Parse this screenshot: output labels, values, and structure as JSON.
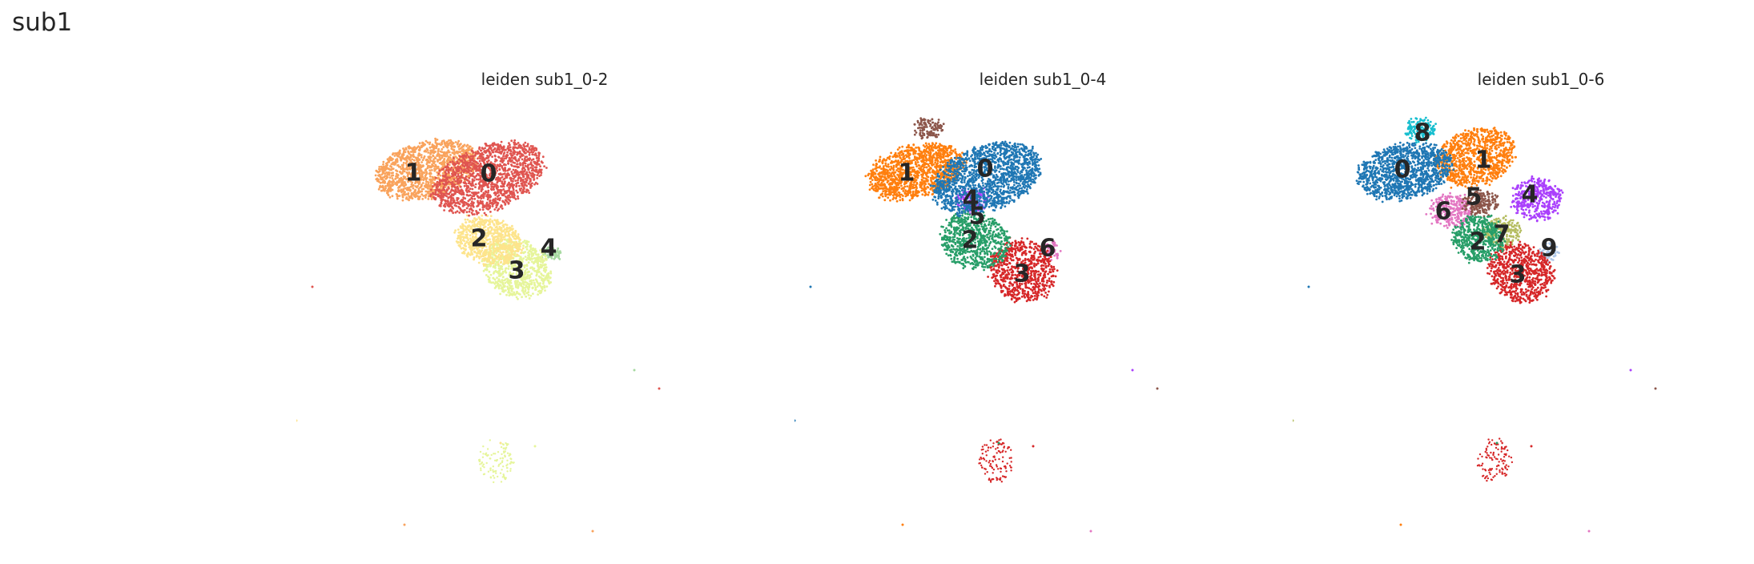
{
  "figure": {
    "suptitle": "sub1"
  },
  "chart_data": [
    {
      "type": "scatter",
      "title": "leiden sub1_0-2",
      "xlabel": "",
      "ylabel": "",
      "legend": "on data",
      "grid": false,
      "clusters": [
        {
          "label": "0",
          "color": "#e05550"
        },
        {
          "label": "1",
          "color": "#f9a35d"
        },
        {
          "label": "2",
          "color": "#fde48c"
        },
        {
          "label": "3",
          "color": "#e6f59a"
        },
        {
          "label": "4",
          "color": "#a6d9a0"
        }
      ]
    },
    {
      "type": "scatter",
      "title": "leiden sub1_0-4",
      "xlabel": "",
      "ylabel": "",
      "legend": "on data",
      "grid": false,
      "clusters": [
        {
          "label": "0",
          "color": "#1f77b4"
        },
        {
          "label": "1",
          "color": "#ff7f0e"
        },
        {
          "label": "2",
          "color": "#279e68"
        },
        {
          "label": "3",
          "color": "#d62728"
        },
        {
          "label": "4",
          "color": "#aa40fc"
        },
        {
          "label": "5",
          "color": "#8c564b"
        },
        {
          "label": "6",
          "color": "#e377c2"
        }
      ]
    },
    {
      "type": "scatter",
      "title": "leiden sub1_0-6",
      "xlabel": "",
      "ylabel": "",
      "legend": "on data",
      "grid": false,
      "clusters": [
        {
          "label": "0",
          "color": "#1f77b4"
        },
        {
          "label": "1",
          "color": "#ff7f0e"
        },
        {
          "label": "2",
          "color": "#279e68"
        },
        {
          "label": "3",
          "color": "#d62728"
        },
        {
          "label": "4",
          "color": "#aa40fc"
        },
        {
          "label": "5",
          "color": "#8c564b"
        },
        {
          "label": "6",
          "color": "#e377c2"
        },
        {
          "label": "7",
          "color": "#b5bd61"
        },
        {
          "label": "8",
          "color": "#17becf"
        },
        {
          "label": "9",
          "color": "#aec7e8"
        }
      ]
    }
  ]
}
